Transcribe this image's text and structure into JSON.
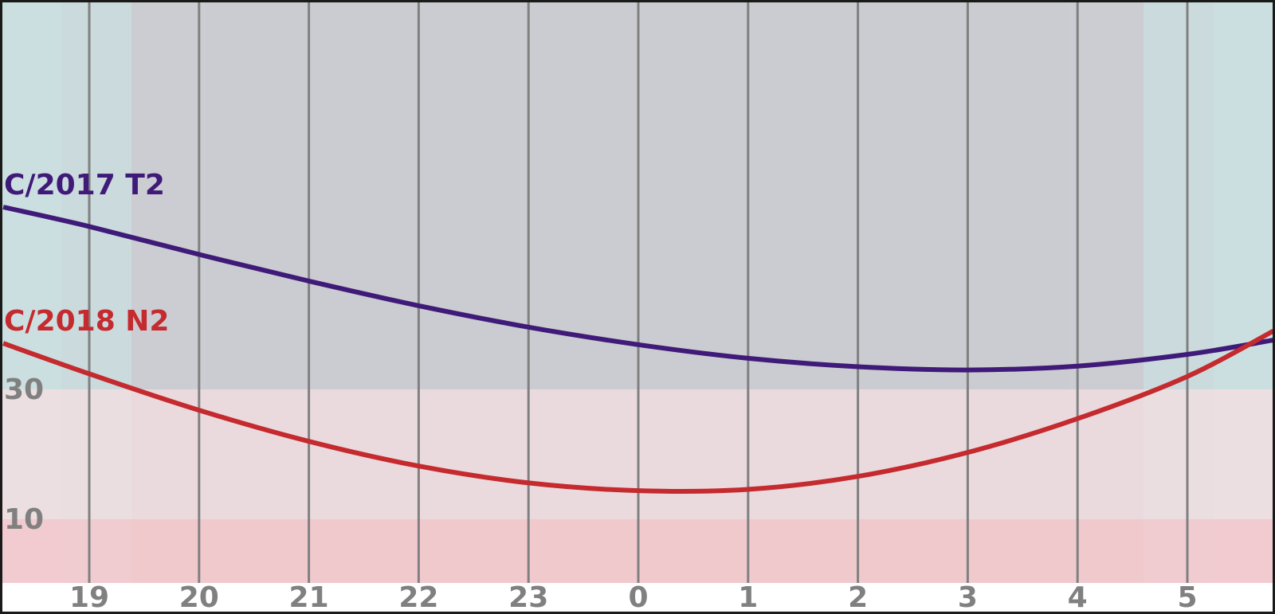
{
  "chart_data": {
    "type": "line",
    "xlabel": "",
    "ylabel": "",
    "x_ticks": [
      "19",
      "20",
      "21",
      "22",
      "23",
      "0",
      "1",
      "2",
      "3",
      "4",
      "5"
    ],
    "y_ticks": [
      "30",
      "10"
    ],
    "series": [
      {
        "name": "C/2017 T2",
        "color": "#3f1a78",
        "x": [
          "18:13",
          "19:00",
          "20:00",
          "21:00",
          "22:00",
          "23:00",
          "0:00",
          "1:00",
          "2:00",
          "3:00",
          "4:00",
          "5:00",
          "5:47"
        ],
        "y": [
          58.1,
          55.1,
          50.8,
          46.7,
          42.9,
          39.6,
          36.9,
          34.8,
          33.5,
          33.0,
          33.6,
          35.4,
          37.6
        ]
      },
      {
        "name": "C/2018 N2",
        "color": "#c42a2e",
        "x": [
          "18:13",
          "19:00",
          "20:00",
          "21:00",
          "22:00",
          "23:00",
          "0:00",
          "1:00",
          "2:00",
          "3:00",
          "4:00",
          "5:00",
          "5:47"
        ],
        "y": [
          37.1,
          32.4,
          26.8,
          22.0,
          18.2,
          15.6,
          14.4,
          14.6,
          16.6,
          20.3,
          25.5,
          32.0,
          39.0
        ]
      }
    ]
  }
}
